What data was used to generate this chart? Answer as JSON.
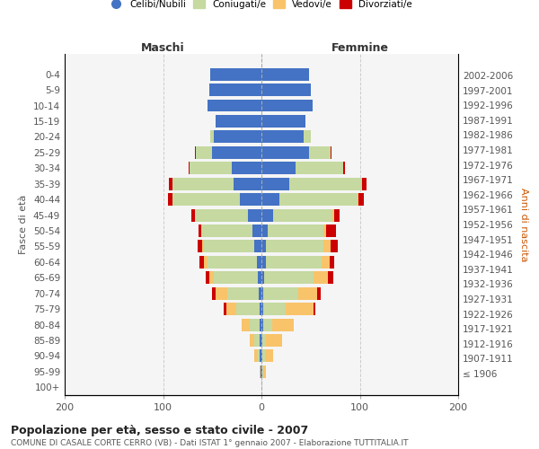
{
  "age_groups": [
    "100+",
    "95-99",
    "90-94",
    "85-89",
    "80-84",
    "75-79",
    "70-74",
    "65-69",
    "60-64",
    "55-59",
    "50-54",
    "45-49",
    "40-44",
    "35-39",
    "30-34",
    "25-29",
    "20-24",
    "15-19",
    "10-14",
    "5-9",
    "0-4"
  ],
  "birth_years": [
    "≤ 1906",
    "1907-1911",
    "1912-1916",
    "1917-1921",
    "1922-1926",
    "1927-1931",
    "1932-1936",
    "1937-1941",
    "1942-1946",
    "1947-1951",
    "1952-1956",
    "1957-1961",
    "1962-1966",
    "1967-1971",
    "1972-1976",
    "1977-1981",
    "1982-1986",
    "1987-1991",
    "1992-1996",
    "1997-2001",
    "2002-2006"
  ],
  "colors": {
    "celibi": "#4472c4",
    "coniugati": "#c5d9a0",
    "vedovi": "#f9c36a",
    "divorziati": "#cc0000"
  },
  "males": {
    "celibi": [
      0,
      1,
      2,
      2,
      2,
      2,
      3,
      4,
      5,
      7,
      9,
      14,
      22,
      28,
      30,
      50,
      48,
      47,
      55,
      53,
      52
    ],
    "coniugati": [
      0,
      0,
      3,
      5,
      10,
      24,
      32,
      44,
      50,
      51,
      51,
      54,
      68,
      62,
      43,
      17,
      4,
      0,
      0,
      0,
      0
    ],
    "vedovi": [
      0,
      1,
      2,
      5,
      8,
      10,
      12,
      5,
      3,
      2,
      1,
      0,
      0,
      0,
      0,
      0,
      0,
      0,
      0,
      0,
      0
    ],
    "divorziati": [
      0,
      0,
      0,
      0,
      0,
      2,
      3,
      4,
      5,
      5,
      3,
      3,
      5,
      4,
      1,
      1,
      0,
      0,
      0,
      0,
      0
    ]
  },
  "females": {
    "nubili": [
      0,
      1,
      1,
      1,
      2,
      2,
      2,
      3,
      5,
      5,
      6,
      12,
      18,
      28,
      35,
      48,
      43,
      45,
      52,
      50,
      48
    ],
    "coniugate": [
      0,
      1,
      3,
      4,
      9,
      23,
      35,
      50,
      56,
      58,
      57,
      60,
      80,
      73,
      48,
      22,
      7,
      0,
      0,
      0,
      0
    ],
    "vedove": [
      0,
      3,
      8,
      16,
      22,
      28,
      20,
      15,
      8,
      7,
      3,
      2,
      1,
      1,
      0,
      0,
      0,
      0,
      0,
      0,
      0
    ],
    "divorziate": [
      0,
      0,
      0,
      0,
      0,
      2,
      3,
      5,
      5,
      8,
      10,
      5,
      5,
      5,
      2,
      1,
      0,
      0,
      0,
      0,
      0
    ]
  },
  "xlim": [
    -200,
    200
  ],
  "xticks": [
    -200,
    -100,
    0,
    100,
    200
  ],
  "xticklabels": [
    "200",
    "100",
    "0",
    "100",
    "200"
  ],
  "title": "Popolazione per età, sesso e stato civile - 2007",
  "subtitle": "COMUNE DI CASALE CORTE CERRO (VB) - Dati ISTAT 1° gennaio 2007 - Elaborazione TUTTITALIA.IT",
  "ylabel_left": "Fasce di età",
  "ylabel_right": "Anni di nascita",
  "maschi_label": "Maschi",
  "femmine_label": "Femmine",
  "legend_labels": [
    "Celibi/Nubili",
    "Coniugati/e",
    "Vedovi/e",
    "Divorziati/e"
  ],
  "bg_color": "#f5f5f5",
  "bar_height": 0.8
}
